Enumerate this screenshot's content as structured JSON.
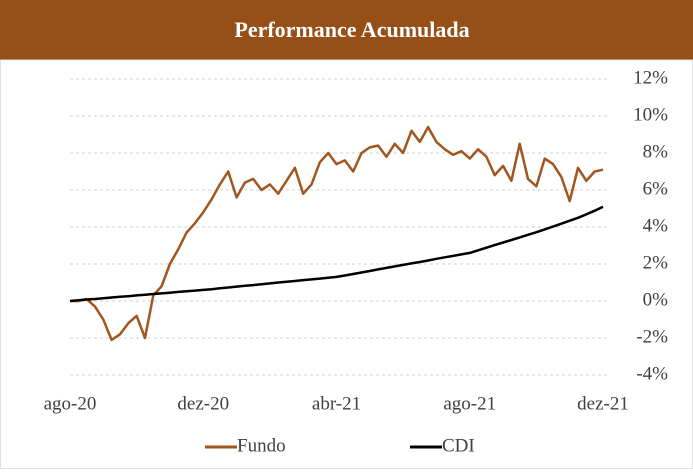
{
  "chart_data": {
    "type": "line",
    "title": "Performance Acumulada",
    "categories": [
      "ago-20",
      null,
      null,
      null,
      null,
      null,
      null,
      null,
      null,
      null,
      null,
      null,
      null,
      null,
      null,
      null,
      "dez-20",
      null,
      null,
      null,
      null,
      null,
      null,
      null,
      null,
      null,
      null,
      null,
      null,
      null,
      null,
      null,
      "abr-21",
      null,
      null,
      null,
      null,
      null,
      null,
      null,
      null,
      null,
      null,
      null,
      null,
      null,
      null,
      null,
      "ago-21",
      null,
      null,
      null,
      null,
      null,
      null,
      null,
      null,
      null,
      null,
      null,
      null,
      null,
      null,
      null,
      "dez-21"
    ],
    "series": [
      {
        "name": "Fundo",
        "color": "#a0561e",
        "values": [
          0,
          0,
          0.1,
          -0.3,
          -1.0,
          -2.1,
          -1.8,
          -1.2,
          -0.8,
          -2.0,
          0.3,
          0.8,
          2.0,
          2.8,
          3.7,
          4.2,
          4.8,
          5.5,
          6.3,
          7.0,
          5.6,
          6.4,
          6.6,
          6.0,
          6.3,
          5.8,
          6.5,
          7.2,
          5.8,
          6.3,
          7.5,
          8.0,
          7.4,
          7.6,
          7.0,
          8.0,
          8.3,
          8.4,
          7.8,
          8.5,
          8.0,
          9.2,
          8.6,
          9.4,
          8.6,
          8.2,
          7.9,
          8.1,
          7.7,
          8.2,
          7.8,
          6.8,
          7.3,
          6.5,
          8.5,
          6.6,
          6.2,
          7.7,
          7.4,
          6.7,
          5.4,
          7.2,
          6.5,
          7.0,
          7.1
        ]
      },
      {
        "name": "CDI",
        "color": "#000000",
        "values": [
          0,
          0.04,
          0.08,
          0.11,
          0.15,
          0.19,
          0.23,
          0.26,
          0.3,
          0.34,
          0.38,
          0.41,
          0.45,
          0.49,
          0.53,
          0.56,
          0.6,
          0.64,
          0.69,
          0.73,
          0.78,
          0.82,
          0.86,
          0.91,
          0.95,
          1.0,
          1.04,
          1.08,
          1.13,
          1.17,
          1.21,
          1.26,
          1.3,
          1.38,
          1.46,
          1.54,
          1.62,
          1.71,
          1.79,
          1.87,
          1.95,
          2.03,
          2.11,
          2.19,
          2.28,
          2.36,
          2.44,
          2.52,
          2.6,
          2.74,
          2.88,
          3.02,
          3.16,
          3.3,
          3.44,
          3.58,
          3.72,
          3.87,
          4.02,
          4.18,
          4.34,
          4.5,
          4.68,
          4.88,
          5.1
        ]
      }
    ],
    "ylim": [
      -4,
      12
    ],
    "yticks": [
      {
        "value": -4,
        "label": "-4%"
      },
      {
        "value": -2,
        "label": "-2%"
      },
      {
        "value": 0,
        "label": "0%"
      },
      {
        "value": 2,
        "label": "2%"
      },
      {
        "value": 4,
        "label": "4%"
      },
      {
        "value": 6,
        "label": "6%"
      },
      {
        "value": 8,
        "label": "8%"
      },
      {
        "value": 10,
        "label": "10%"
      },
      {
        "value": 12,
        "label": "12%"
      }
    ],
    "grid": true,
    "legend": "bottom"
  }
}
